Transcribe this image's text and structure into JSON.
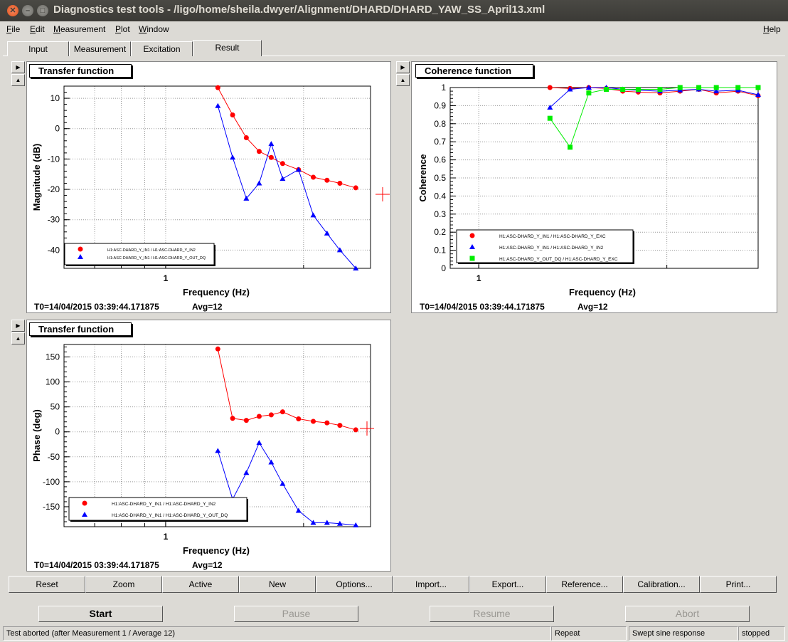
{
  "window": {
    "title": "Diagnostics test tools - /ligo/home/sheila.dwyer/Alignment/DHARD/DHARD_YAW_SS_April13.xml"
  },
  "menubar": {
    "items": [
      "File",
      "Edit",
      "Measurement",
      "Plot",
      "Window"
    ],
    "underlines": [
      "F",
      "E",
      "M",
      "P",
      "W"
    ],
    "help": "Help"
  },
  "tabs": [
    "Input",
    "Measurement",
    "Excitation",
    "Result"
  ],
  "active_tab": "Result",
  "panels": {
    "tf_mag": {
      "title": "Transfer function",
      "t0": "T0=14/04/2015 03:39:44.171875",
      "avg": "Avg=12"
    },
    "coherence": {
      "title": "Coherence function",
      "t0": "T0=14/04/2015 03:39:44.171875",
      "avg": "Avg=12"
    },
    "tf_phase": {
      "title": "Transfer function",
      "t0": "T0=14/04/2015 03:39:44.171875",
      "avg": "Avg=12"
    }
  },
  "chart_data": [
    {
      "type": "line",
      "title": "Transfer function",
      "xlabel": "Frequency (Hz)",
      "ylabel": "Magnitude (dB)",
      "xscale": "log",
      "xlim": [
        0.6,
        2.8
      ],
      "ylim": [
        -46,
        14
      ],
      "x_ticklabels": [
        "1"
      ],
      "y_ticks": [
        10,
        0,
        -10,
        -20,
        -30,
        -40
      ],
      "grid": true,
      "legend": "bottom-left",
      "series": [
        {
          "name": "H1:ASC-DHARD_Y_IN1 / H1:ASC-DHARD_Y_IN2",
          "color": "#ff0000",
          "marker": "circle",
          "x": [
            1.3,
            1.4,
            1.5,
            1.6,
            1.7,
            1.8,
            1.95,
            2.1,
            2.25,
            2.4,
            2.6
          ],
          "y": [
            13.5,
            4.5,
            -3,
            -7.5,
            -9.5,
            -11.5,
            -13.5,
            -16,
            -17,
            -18,
            -19.5
          ]
        },
        {
          "name": "H1:ASC-DHARD_Y_IN1 / H1:ASC-DHARD_Y_OUT_DQ",
          "color": "#0000ff",
          "marker": "triangle",
          "x": [
            1.3,
            1.4,
            1.5,
            1.6,
            1.7,
            1.8,
            1.95,
            2.1,
            2.25,
            2.4,
            2.6
          ],
          "y": [
            7.5,
            -9.5,
            -23,
            -18,
            -5,
            -16.5,
            -13.5,
            -28.5,
            -34.5,
            -40,
            -46
          ]
        }
      ]
    },
    {
      "type": "line",
      "title": "Coherence function",
      "xlabel": "Frequency (Hz)",
      "ylabel": "Coherence",
      "xscale": "log",
      "xlim": [
        0.9,
        2.8
      ],
      "ylim": [
        0,
        1
      ],
      "x_ticklabels": [
        "1"
      ],
      "y_ticks": [
        0,
        0.1,
        0.2,
        0.3,
        0.4,
        0.5,
        0.6,
        0.7,
        0.8,
        0.9,
        1
      ],
      "grid": true,
      "legend": "bottom-center",
      "series": [
        {
          "name": "H1:ASC-DHARD_Y_IN1 / H1:ASC-DHARD_Y_EXC",
          "color": "#ff0000",
          "marker": "circle",
          "x": [
            1.3,
            1.4,
            1.5,
            1.6,
            1.7,
            1.8,
            1.95,
            2.1,
            2.25,
            2.4,
            2.6,
            2.8
          ],
          "y": [
            1.0,
            0.995,
            1.0,
            0.995,
            0.98,
            0.975,
            0.97,
            0.98,
            0.99,
            0.97,
            0.98,
            0.955
          ]
        },
        {
          "name": "H1:ASC-DHARD_Y_IN1 / H1:ASC-DHARD_Y_IN2",
          "color": "#0000ff",
          "marker": "triangle",
          "x": [
            1.3,
            1.4,
            1.5,
            1.6,
            1.7,
            1.8,
            1.95,
            2.1,
            2.25,
            2.4,
            2.6,
            2.8
          ],
          "y": [
            0.89,
            0.99,
            1.0,
            1.0,
            0.99,
            0.985,
            0.98,
            0.985,
            0.99,
            0.98,
            0.985,
            0.96
          ]
        },
        {
          "name": "H1:ASC-DHARD_Y_OUT_DQ / H1:ASC-DHARD_Y_EXC",
          "color": "#00ee00",
          "marker": "square",
          "x": [
            1.3,
            1.4,
            1.5,
            1.6,
            1.7,
            1.8,
            1.95,
            2.1,
            2.25,
            2.4,
            2.6,
            2.8
          ],
          "y": [
            0.83,
            0.67,
            0.97,
            0.99,
            0.99,
            0.99,
            0.99,
            1.0,
            1.0,
            1.0,
            1.0,
            1.0
          ]
        }
      ]
    },
    {
      "type": "line",
      "title": "Transfer function",
      "xlabel": "Frequency (Hz)",
      "ylabel": "Phase (deg)",
      "xscale": "log",
      "xlim": [
        0.6,
        2.8
      ],
      "ylim": [
        -190,
        175
      ],
      "x_ticklabels": [
        "1"
      ],
      "y_ticks": [
        150,
        100,
        50,
        0,
        -50,
        -100,
        -150
      ],
      "grid": true,
      "legend": "bottom-left",
      "series": [
        {
          "name": "H1:ASC-DHARD_Y_IN1 / H1:ASC-DHARD_Y_IN2",
          "color": "#ff0000",
          "marker": "circle",
          "x": [
            1.3,
            1.4,
            1.5,
            1.6,
            1.7,
            1.8,
            1.95,
            2.1,
            2.25,
            2.4,
            2.6
          ],
          "y": [
            166,
            27,
            23,
            31,
            34,
            40,
            26,
            21,
            18,
            13,
            4
          ]
        },
        {
          "name": "H1:ASC-DHARD_Y_IN1 / H1:ASC-DHARD_Y_OUT_DQ",
          "color": "#0000ff",
          "marker": "triangle",
          "x": [
            1.3,
            1.4,
            1.5,
            1.6,
            1.7,
            1.8,
            1.95,
            2.1,
            2.25,
            2.4,
            2.6
          ],
          "y": [
            -38,
            -135,
            -82,
            -22,
            -61,
            -104,
            -158,
            -182,
            -182,
            -184,
            -187
          ]
        }
      ]
    }
  ],
  "toolbar": [
    "Reset",
    "Zoom",
    "Active",
    "New",
    "Options...",
    "Import...",
    "Export...",
    "Reference...",
    "Calibration...",
    "Print..."
  ],
  "actions": {
    "start": "Start",
    "pause": "Pause",
    "resume": "Resume",
    "abort": "Abort"
  },
  "statusbar": {
    "message": "Test aborted (after Measurement 1 / Average 12)",
    "mode": "Repeat",
    "type": "Swept sine response",
    "state": "stopped"
  }
}
